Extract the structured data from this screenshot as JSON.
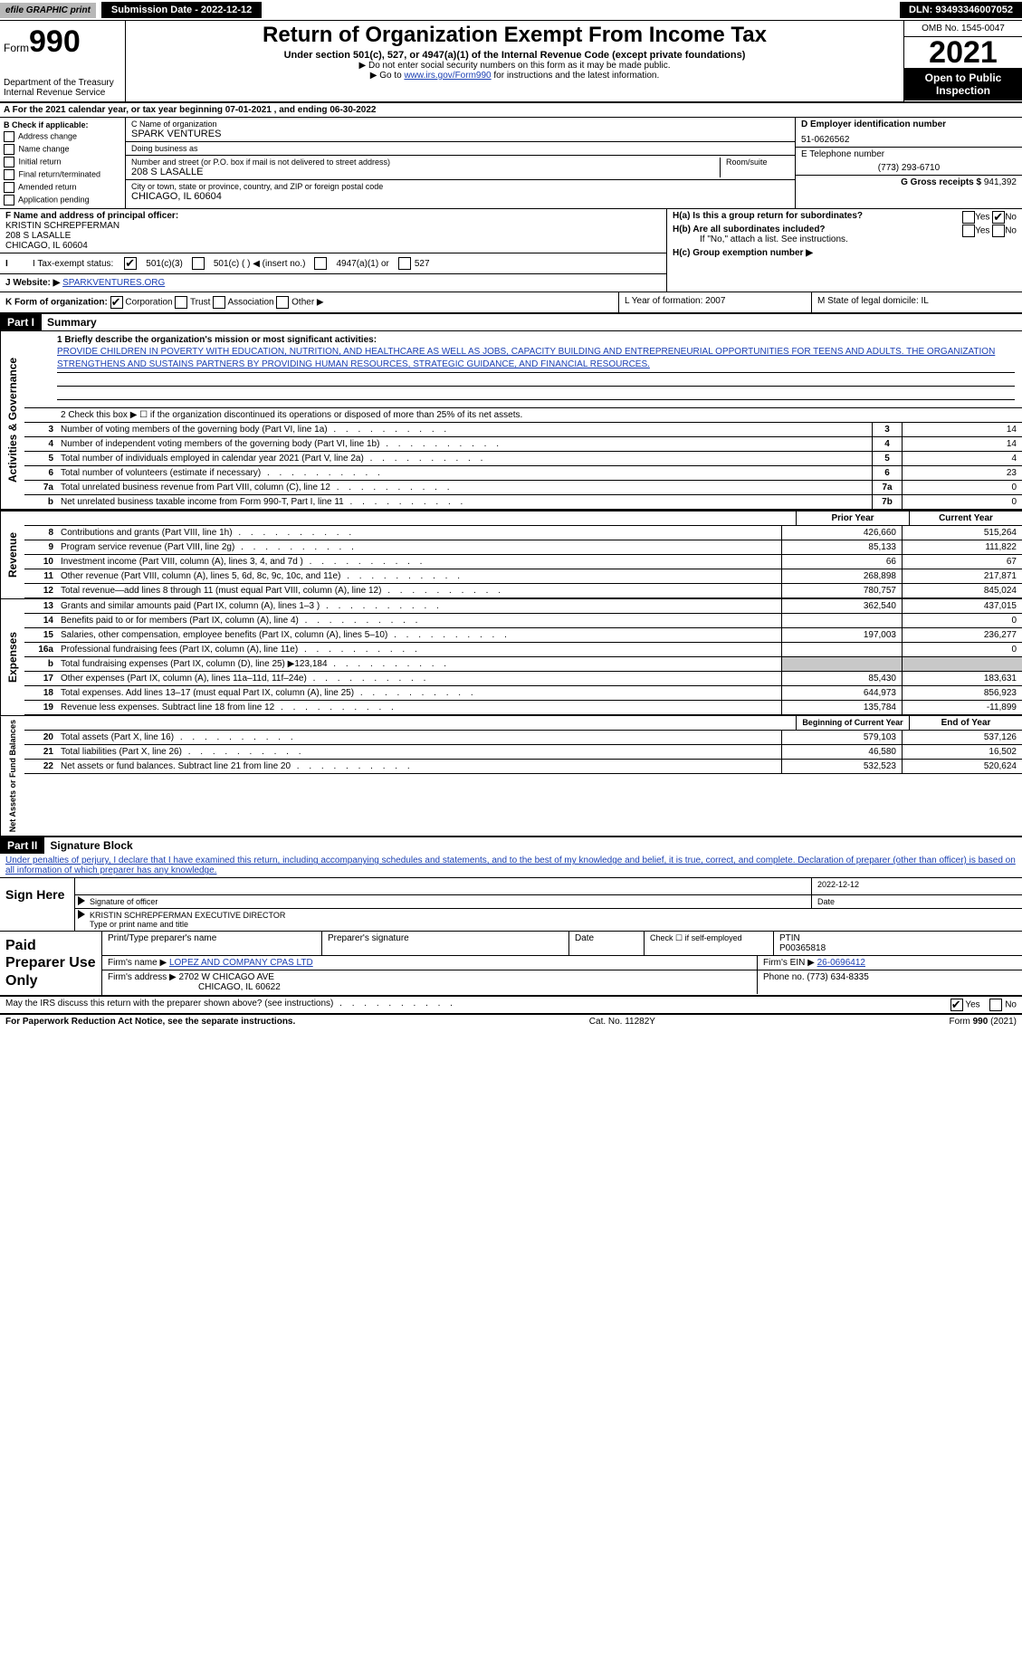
{
  "topbar": {
    "efile": "efile GRAPHIC print",
    "submission_label": "Submission Date - 2022-12-12",
    "dln": "DLN: 93493346007052"
  },
  "header": {
    "form_label": "Form",
    "form_no": "990",
    "dept": "Department of the Treasury Internal Revenue Service",
    "title": "Return of Organization Exempt From Income Tax",
    "sub1": "Under section 501(c), 527, or 4947(a)(1) of the Internal Revenue Code (except private foundations)",
    "sub2": "▶ Do not enter social security numbers on this form as it may be made public.",
    "sub3_pre": "▶ Go to ",
    "sub3_link": "www.irs.gov/Form990",
    "sub3_post": " for instructions and the latest information.",
    "omb": "OMB No. 1545-0047",
    "year": "2021",
    "open": "Open to Public Inspection"
  },
  "rowA": "A For the 2021 calendar year, or tax year beginning 07-01-2021    , and ending 06-30-2022",
  "colB": {
    "head": "B Check if applicable:",
    "items": [
      "Address change",
      "Name change",
      "Initial return",
      "Final return/terminated",
      "Amended return",
      "Application pending"
    ]
  },
  "colC": {
    "name_lab": "C Name of organization",
    "name": "SPARK VENTURES",
    "dba_lab": "Doing business as",
    "addr_lab": "Number and street (or P.O. box if mail is not delivered to street address)",
    "room_lab": "Room/suite",
    "addr": "208 S LASALLE",
    "city_lab": "City or town, state or province, country, and ZIP or foreign postal code",
    "city": "CHICAGO, IL  60604"
  },
  "colD": {
    "ein_lab": "D Employer identification number",
    "ein": "51-0626562",
    "phone_lab": "E Telephone number",
    "phone": "(773) 293-6710",
    "gross_lab": "G Gross receipts $",
    "gross": "941,392"
  },
  "blockF": {
    "f_lab": "F Name and address of principal officer:",
    "f_name": "KRISTIN SCHREPFERMAN",
    "f_addr1": "208 S LASALLE",
    "f_addr2": "CHICAGO, IL  60604",
    "i_lab": "I Tax-exempt status:",
    "i_501c3": "501(c)(3)",
    "i_501c": "501(c) (  ) ◀ (insert no.)",
    "i_4947": "4947(a)(1) or",
    "i_527": "527",
    "j_lab": "J Website: ▶",
    "j_site": "SPARKVENTURES.ORG",
    "h_a": "H(a)  Is this a group return for subordinates?",
    "h_b": "H(b)  Are all subordinates included?",
    "h_b_note": "If \"No,\" attach a list. See instructions.",
    "h_c": "H(c)  Group exemption number ▶",
    "yes": "Yes",
    "no": "No"
  },
  "rowK": {
    "k": "K Form of organization:",
    "k_opts": [
      "Corporation",
      "Trust",
      "Association",
      "Other ▶"
    ],
    "l": "L Year of formation: 2007",
    "m": "M State of legal domicile: IL"
  },
  "part1": {
    "bar": "Part I",
    "title": "Summary",
    "line1_lab": "1  Briefly describe the organization's mission or most significant activities:",
    "mission": "PROVIDE CHILDREN IN POVERTY WITH EDUCATION, NUTRITION, AND HEALTHCARE AS WELL AS JOBS, CAPACITY BUILDING AND ENTREPRENEURIAL OPPORTUNITIES FOR TEENS AND ADULTS. THE ORGANIZATION STRENGTHENS AND SUSTAINS PARTNERS BY PROVIDING HUMAN RESOURCES, STRATEGIC GUIDANCE, AND FINANCIAL RESOURCES.",
    "line2": "2   Check this box ▶ ☐  if the organization discontinued its operations or disposed of more than 25% of its net assets.",
    "rows_gov": [
      {
        "n": "3",
        "d": "Number of voting members of the governing body (Part VI, line 1a)",
        "box": "3",
        "v": "14"
      },
      {
        "n": "4",
        "d": "Number of independent voting members of the governing body (Part VI, line 1b)",
        "box": "4",
        "v": "14"
      },
      {
        "n": "5",
        "d": "Total number of individuals employed in calendar year 2021 (Part V, line 2a)",
        "box": "5",
        "v": "4"
      },
      {
        "n": "6",
        "d": "Total number of volunteers (estimate if necessary)",
        "box": "6",
        "v": "23"
      },
      {
        "n": "7a",
        "d": "Total unrelated business revenue from Part VIII, column (C), line 12",
        "box": "7a",
        "v": "0"
      },
      {
        "n": "b",
        "d": "Net unrelated business taxable income from Form 990-T, Part I, line 11",
        "box": "7b",
        "v": "0"
      }
    ],
    "col_prior": "Prior Year",
    "col_curr": "Current Year",
    "rows_rev": [
      {
        "n": "8",
        "d": "Contributions and grants (Part VIII, line 1h)",
        "p": "426,660",
        "c": "515,264"
      },
      {
        "n": "9",
        "d": "Program service revenue (Part VIII, line 2g)",
        "p": "85,133",
        "c": "111,822"
      },
      {
        "n": "10",
        "d": "Investment income (Part VIII, column (A), lines 3, 4, and 7d )",
        "p": "66",
        "c": "67"
      },
      {
        "n": "11",
        "d": "Other revenue (Part VIII, column (A), lines 5, 6d, 8c, 9c, 10c, and 11e)",
        "p": "268,898",
        "c": "217,871"
      },
      {
        "n": "12",
        "d": "Total revenue—add lines 8 through 11 (must equal Part VIII, column (A), line 12)",
        "p": "780,757",
        "c": "845,024"
      }
    ],
    "rows_exp": [
      {
        "n": "13",
        "d": "Grants and similar amounts paid (Part IX, column (A), lines 1–3 )",
        "p": "362,540",
        "c": "437,015"
      },
      {
        "n": "14",
        "d": "Benefits paid to or for members (Part IX, column (A), line 4)",
        "p": "",
        "c": "0"
      },
      {
        "n": "15",
        "d": "Salaries, other compensation, employee benefits (Part IX, column (A), lines 5–10)",
        "p": "197,003",
        "c": "236,277"
      },
      {
        "n": "16a",
        "d": "Professional fundraising fees (Part IX, column (A), line 11e)",
        "p": "",
        "c": "0"
      },
      {
        "n": "b",
        "d": "Total fundraising expenses (Part IX, column (D), line 25) ▶123,184",
        "p": "SHADE",
        "c": "SHADE"
      },
      {
        "n": "17",
        "d": "Other expenses (Part IX, column (A), lines 11a–11d, 11f–24e)",
        "p": "85,430",
        "c": "183,631"
      },
      {
        "n": "18",
        "d": "Total expenses. Add lines 13–17 (must equal Part IX, column (A), line 25)",
        "p": "644,973",
        "c": "856,923"
      },
      {
        "n": "19",
        "d": "Revenue less expenses. Subtract line 18 from line 12",
        "p": "135,784",
        "c": "-11,899"
      }
    ],
    "col_beg": "Beginning of Current Year",
    "col_end": "End of Year",
    "rows_net": [
      {
        "n": "20",
        "d": "Total assets (Part X, line 16)",
        "p": "579,103",
        "c": "537,126"
      },
      {
        "n": "21",
        "d": "Total liabilities (Part X, line 26)",
        "p": "46,580",
        "c": "16,502"
      },
      {
        "n": "22",
        "d": "Net assets or fund balances. Subtract line 21 from line 20",
        "p": "532,523",
        "c": "520,624"
      }
    ],
    "vtab_gov": "Activities & Governance",
    "vtab_rev": "Revenue",
    "vtab_exp": "Expenses",
    "vtab_net": "Net Assets or Fund Balances"
  },
  "part2": {
    "bar": "Part II",
    "title": "Signature Block",
    "decl": "Under penalties of perjury, I declare that I have examined this return, including accompanying schedules and statements, and to the best of my knowledge and belief, it is true, correct, and complete. Declaration of preparer (other than officer) is based on all information of which preparer has any knowledge.",
    "sign_here": "Sign Here",
    "sig_officer": "Signature of officer",
    "sig_date": "Date",
    "sig_date_val": "2022-12-12",
    "sig_name": "KRISTIN SCHREPFERMAN  EXECUTIVE DIRECTOR",
    "sig_name_lab": "Type or print name and title",
    "paid": "Paid Preparer Use Only",
    "p_name_lab": "Print/Type preparer's name",
    "p_sig_lab": "Preparer's signature",
    "p_date_lab": "Date",
    "p_check": "Check ☐ if self-employed",
    "p_ptin_lab": "PTIN",
    "p_ptin": "P00365818",
    "p_firm_lab": "Firm's name    ▶",
    "p_firm": "LOPEZ AND COMPANY CPAS LTD",
    "p_ein_lab": "Firm's EIN ▶",
    "p_ein": "26-0696412",
    "p_addr_lab": "Firm's address ▶",
    "p_addr1": "2702 W CHICAGO AVE",
    "p_addr2": "CHICAGO, IL  60622",
    "p_phone_lab": "Phone no.",
    "p_phone": "(773) 634-8335",
    "may_irs": "May the IRS discuss this return with the preparer shown above? (see instructions)"
  },
  "footer": {
    "pra": "For Paperwork Reduction Act Notice, see the separate instructions.",
    "cat": "Cat. No. 11282Y",
    "form": "Form 990 (2021)"
  }
}
